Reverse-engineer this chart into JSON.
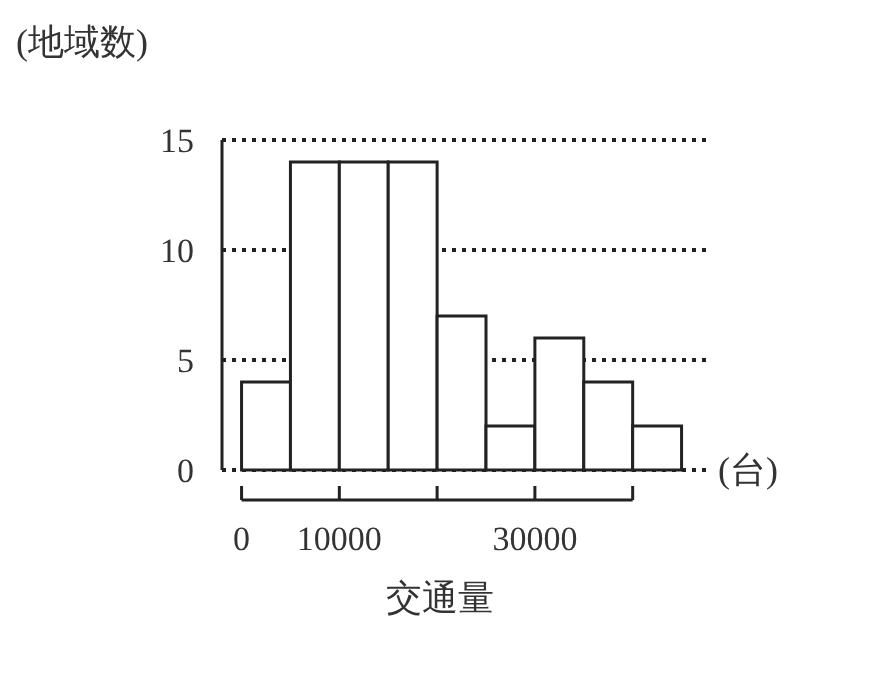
{
  "chart_data": {
    "type": "histogram",
    "ylabel": "(地域数)",
    "xlabel": "交通量",
    "annotations": [
      "(台)"
    ],
    "bins": [
      0,
      5000,
      10000,
      15000,
      20000,
      25000,
      30000,
      35000,
      40000,
      45000
    ],
    "values": [
      4,
      14,
      14,
      14,
      7,
      2,
      6,
      4,
      2
    ],
    "color": "#ffffff",
    "xlim": [
      -2000,
      47500
    ],
    "ylim": [
      0,
      15
    ],
    "xticks": [
      0,
      10000,
      {
        "value": 20000,
        "label": null
      },
      30000,
      {
        "value": 40000,
        "label": null
      }
    ],
    "yticks": [
      0,
      5,
      10,
      15
    ],
    "grid": "y"
  }
}
